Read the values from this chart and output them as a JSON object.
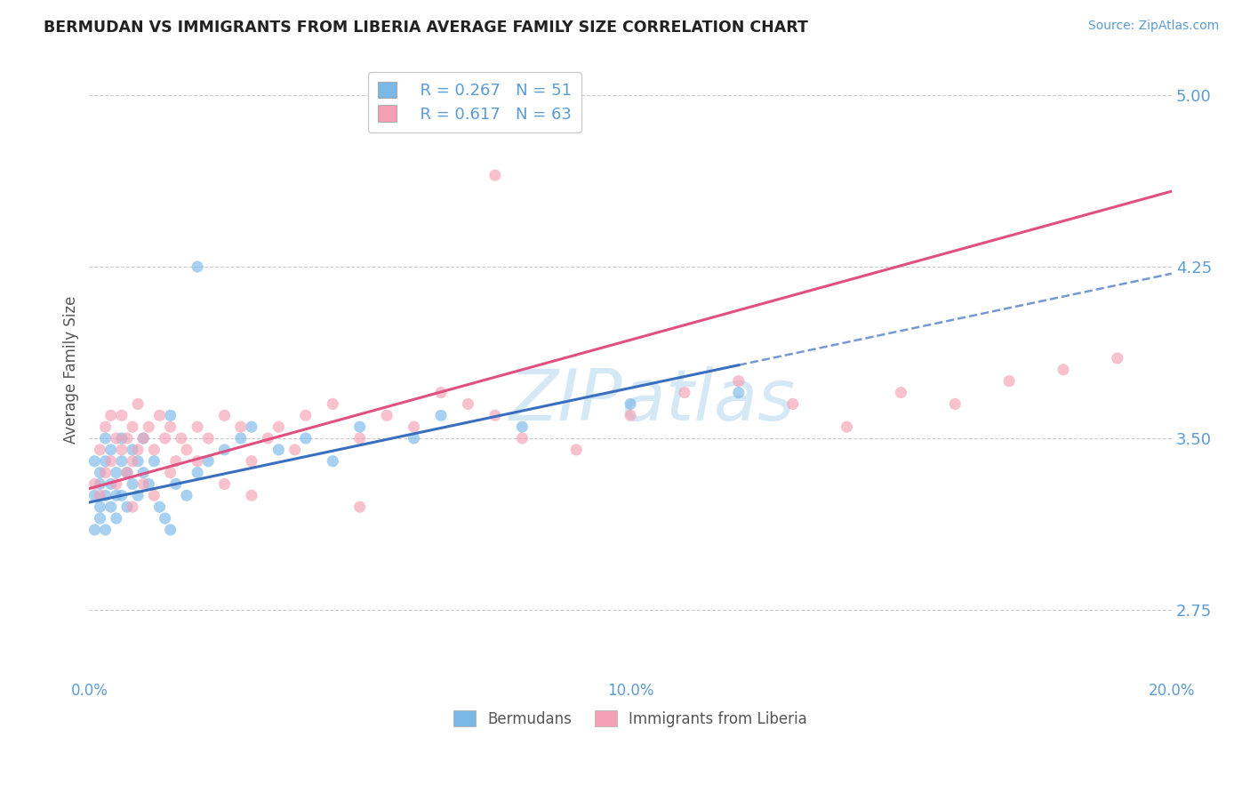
{
  "title": "BERMUDAN VS IMMIGRANTS FROM LIBERIA AVERAGE FAMILY SIZE CORRELATION CHART",
  "source": "Source: ZipAtlas.com",
  "ylabel": "Average Family Size",
  "xmin": 0.0,
  "xmax": 0.2,
  "ymin": 2.45,
  "ymax": 5.15,
  "yticks": [
    2.75,
    3.5,
    4.25,
    5.0
  ],
  "xticks": [
    0.0,
    0.05,
    0.1,
    0.15,
    0.2
  ],
  "xticklabels": [
    "0.0%",
    "",
    "10.0%",
    "",
    "20.0%"
  ],
  "blue_R": 0.267,
  "blue_N": 51,
  "pink_R": 0.617,
  "pink_N": 63,
  "blue_color": "#7ab8e8",
  "pink_color": "#f4a0b5",
  "blue_line_color": "#3a6fbf",
  "pink_line_color": "#e05080",
  "axis_color": "#5b9bd5",
  "legend_label_blue": "Bermudans",
  "legend_label_pink": "Immigrants from Liberia",
  "blue_scatter_x": [
    0.001,
    0.001,
    0.001,
    0.002,
    0.002,
    0.002,
    0.002,
    0.003,
    0.003,
    0.003,
    0.003,
    0.004,
    0.004,
    0.004,
    0.005,
    0.005,
    0.005,
    0.006,
    0.006,
    0.006,
    0.007,
    0.007,
    0.008,
    0.008,
    0.009,
    0.009,
    0.01,
    0.01,
    0.011,
    0.012,
    0.013,
    0.014,
    0.015,
    0.016,
    0.018,
    0.02,
    0.022,
    0.025,
    0.028,
    0.03,
    0.035,
    0.04,
    0.045,
    0.05,
    0.06,
    0.065,
    0.08,
    0.1,
    0.12,
    0.02,
    0.015
  ],
  "blue_scatter_y": [
    3.25,
    3.1,
    3.4,
    3.2,
    3.35,
    3.15,
    3.3,
    3.25,
    3.4,
    3.5,
    3.1,
    3.3,
    3.45,
    3.2,
    3.25,
    3.35,
    3.15,
    3.4,
    3.25,
    3.5,
    3.35,
    3.2,
    3.3,
    3.45,
    3.25,
    3.4,
    3.35,
    3.5,
    3.3,
    3.4,
    3.2,
    3.15,
    3.1,
    3.3,
    3.25,
    3.35,
    3.4,
    3.45,
    3.5,
    3.55,
    3.45,
    3.5,
    3.4,
    3.55,
    3.5,
    3.6,
    3.55,
    3.65,
    3.7,
    4.25,
    3.6
  ],
  "pink_scatter_x": [
    0.001,
    0.002,
    0.002,
    0.003,
    0.003,
    0.004,
    0.004,
    0.005,
    0.005,
    0.006,
    0.006,
    0.007,
    0.007,
    0.008,
    0.008,
    0.009,
    0.009,
    0.01,
    0.011,
    0.012,
    0.013,
    0.014,
    0.015,
    0.016,
    0.017,
    0.018,
    0.02,
    0.022,
    0.025,
    0.028,
    0.03,
    0.033,
    0.035,
    0.038,
    0.04,
    0.045,
    0.05,
    0.055,
    0.06,
    0.065,
    0.07,
    0.075,
    0.08,
    0.09,
    0.1,
    0.11,
    0.12,
    0.13,
    0.14,
    0.15,
    0.16,
    0.17,
    0.18,
    0.19,
    0.008,
    0.01,
    0.012,
    0.015,
    0.02,
    0.025,
    0.03,
    0.05,
    0.075
  ],
  "pink_scatter_y": [
    3.3,
    3.25,
    3.45,
    3.35,
    3.55,
    3.4,
    3.6,
    3.5,
    3.3,
    3.45,
    3.6,
    3.35,
    3.5,
    3.4,
    3.55,
    3.45,
    3.65,
    3.5,
    3.55,
    3.45,
    3.6,
    3.5,
    3.55,
    3.4,
    3.5,
    3.45,
    3.55,
    3.5,
    3.6,
    3.55,
    3.4,
    3.5,
    3.55,
    3.45,
    3.6,
    3.65,
    3.5,
    3.6,
    3.55,
    3.7,
    3.65,
    3.6,
    3.5,
    3.45,
    3.6,
    3.7,
    3.75,
    3.65,
    3.55,
    3.7,
    3.65,
    3.75,
    3.8,
    3.85,
    3.2,
    3.3,
    3.25,
    3.35,
    3.4,
    3.3,
    3.25,
    3.2,
    4.65
  ],
  "blue_line_x0": 0.0,
  "blue_line_x1": 0.2,
  "blue_line_y0": 3.22,
  "blue_line_y1": 4.22,
  "pink_line_x0": 0.0,
  "pink_line_x1": 0.2,
  "pink_line_y0": 3.28,
  "pink_line_y1": 4.58
}
